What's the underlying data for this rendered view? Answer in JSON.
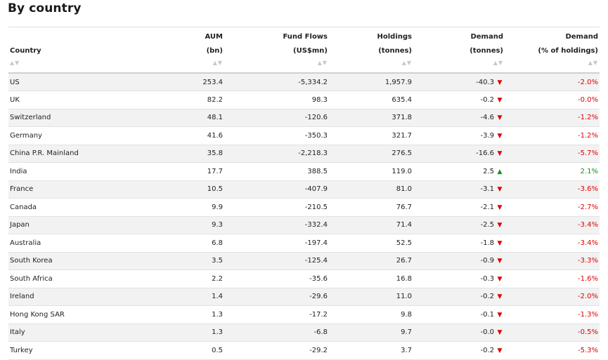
{
  "title": "By country",
  "headers": {
    "country": {
      "l1": "",
      "l2": "Country"
    },
    "aum": {
      "l1": "AUM",
      "l2": "(bn)"
    },
    "flows": {
      "l1": "Fund Flows",
      "l2": "(US$mn)"
    },
    "holdings": {
      "l1": "Holdings",
      "l2": "(tonnes)"
    },
    "demand": {
      "l1": "Demand",
      "l2": "(tonnes)"
    },
    "demand_pct": {
      "l1": "Demand",
      "l2": "(% of holdings)"
    }
  },
  "sort_icon": "▲▼",
  "colors": {
    "negative": "#e00000",
    "positive": "#1a8f1a",
    "stripe": "#f2f2f2"
  },
  "rows": [
    {
      "country": "US",
      "aum": "253.4",
      "flows": "-5,334.2",
      "holdings": "1,957.9",
      "demand": "-40.3",
      "dir": "down",
      "pct": "-2.0%"
    },
    {
      "country": "UK",
      "aum": "82.2",
      "flows": "98.3",
      "holdings": "635.4",
      "demand": "-0.2",
      "dir": "down",
      "pct": "-0.0%"
    },
    {
      "country": "Switzerland",
      "aum": "48.1",
      "flows": "-120.6",
      "holdings": "371.8",
      "demand": "-4.6",
      "dir": "down",
      "pct": "-1.2%"
    },
    {
      "country": "Germany",
      "aum": "41.6",
      "flows": "-350.3",
      "holdings": "321.7",
      "demand": "-3.9",
      "dir": "down",
      "pct": "-1.2%"
    },
    {
      "country": "China P.R. Mainland",
      "aum": "35.8",
      "flows": "-2,218.3",
      "holdings": "276.5",
      "demand": "-16.6",
      "dir": "down",
      "pct": "-5.7%"
    },
    {
      "country": "India",
      "aum": "17.7",
      "flows": "388.5",
      "holdings": "119.0",
      "demand": "2.5",
      "dir": "up",
      "pct": "2.1%"
    },
    {
      "country": "France",
      "aum": "10.5",
      "flows": "-407.9",
      "holdings": "81.0",
      "demand": "-3.1",
      "dir": "down",
      "pct": "-3.6%"
    },
    {
      "country": "Canada",
      "aum": "9.9",
      "flows": "-210.5",
      "holdings": "76.7",
      "demand": "-2.1",
      "dir": "down",
      "pct": "-2.7%"
    },
    {
      "country": "Japan",
      "aum": "9.3",
      "flows": "-332.4",
      "holdings": "71.4",
      "demand": "-2.5",
      "dir": "down",
      "pct": "-3.4%"
    },
    {
      "country": "Australia",
      "aum": "6.8",
      "flows": "-197.4",
      "holdings": "52.5",
      "demand": "-1.8",
      "dir": "down",
      "pct": "-3.4%"
    },
    {
      "country": "South Korea",
      "aum": "3.5",
      "flows": "-125.4",
      "holdings": "26.7",
      "demand": "-0.9",
      "dir": "down",
      "pct": "-3.3%"
    },
    {
      "country": "South Africa",
      "aum": "2.2",
      "flows": "-35.6",
      "holdings": "16.8",
      "demand": "-0.3",
      "dir": "down",
      "pct": "-1.6%"
    },
    {
      "country": "Ireland",
      "aum": "1.4",
      "flows": "-29.6",
      "holdings": "11.0",
      "demand": "-0.2",
      "dir": "down",
      "pct": "-2.0%"
    },
    {
      "country": "Hong Kong SAR",
      "aum": "1.3",
      "flows": "-17.2",
      "holdings": "9.8",
      "demand": "-0.1",
      "dir": "down",
      "pct": "-1.3%"
    },
    {
      "country": "Italy",
      "aum": "1.3",
      "flows": "-6.8",
      "holdings": "9.7",
      "demand": "-0.0",
      "dir": "down",
      "pct": "-0.5%"
    },
    {
      "country": "Turkey",
      "aum": "0.5",
      "flows": "-29.2",
      "holdings": "3.7",
      "demand": "-0.2",
      "dir": "down",
      "pct": "-5.3%"
    }
  ]
}
